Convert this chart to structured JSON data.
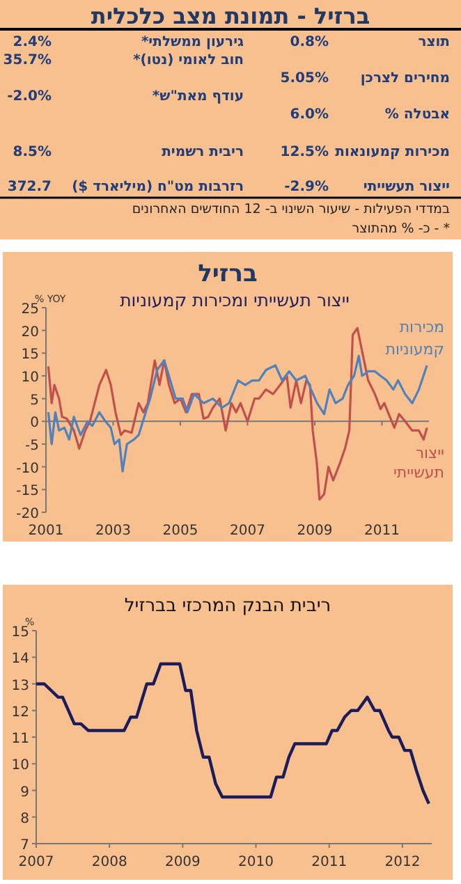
{
  "chart_data": [
    {
      "type": "other",
      "title": "ברזיל - תמונת מצב כלכלית",
      "annotations": [
        "תוצר",
        "0.8%",
        "מחירים לצרכן",
        "5.05%",
        "אבטלה %",
        "6.0%",
        "מכירות קמעונאות",
        "12.5%",
        "ייצור תעשייתי",
        "-2.9%",
        "גירעון ממשלתי*",
        "2.4%",
        "חוב לאומי (נטו)*",
        "35.7%",
        "עודף מאת\"ש*",
        "-2.0%",
        "ריבית רשמית",
        "8.5%",
        "רזרבות מט\"ח (מיליארד $)",
        "372.7",
        "במדדי הפעילות - שיעור השינוי ב- 12 החודשים האחרונים",
        "* - כ- % מהתוצר"
      ]
    },
    {
      "type": "line",
      "title": "ברזיל",
      "subtitle": "ייצור תעשייתי ומכירות קמעוניות",
      "ylabel": "% YOY",
      "xlim": [
        2001,
        2012.4
      ],
      "ylim": [
        -20,
        25
      ],
      "xticks": [
        2001,
        2003,
        2005,
        2007,
        2009,
        2011
      ],
      "yticks": [
        -20,
        -15,
        -10,
        -5,
        0,
        5,
        10,
        15,
        20,
        25
      ],
      "series": [
        {
          "name": "ייצור תעשייתי",
          "color": "#c0504d",
          "x": [
            2001.07,
            2001.17,
            2001.25,
            2001.39,
            2001.48,
            2001.62,
            2001.83,
            2001.99,
            2002.17,
            2002.31,
            2002.45,
            2002.59,
            2002.79,
            2002.93,
            2003.07,
            2003.23,
            2003.34,
            2003.55,
            2003.76,
            2003.9,
            2004.03,
            2004.24,
            2004.38,
            2004.52,
            2004.66,
            2004.83,
            2005.0,
            2005.17,
            2005.34,
            2005.55,
            2005.69,
            2005.83,
            2005.97,
            2006.17,
            2006.35,
            2006.52,
            2006.66,
            2006.79,
            2007.0,
            2007.21,
            2007.34,
            2007.55,
            2007.76,
            2007.97,
            2008.17,
            2008.28,
            2008.45,
            2008.59,
            2008.75,
            2008.86,
            2008.94,
            2009.06,
            2009.14,
            2009.28,
            2009.41,
            2009.55,
            2009.76,
            2009.9,
            2010.03,
            2010.13,
            2010.27,
            2010.41,
            2010.59,
            2010.79,
            2010.96,
            2011.07,
            2011.23,
            2011.37,
            2011.51,
            2011.69,
            2011.9,
            2012.1,
            2012.24,
            2012.34
          ],
          "values": [
            12.1,
            4,
            8,
            5,
            1,
            0.6,
            -2,
            -6,
            -2,
            0,
            4,
            8,
            11.3,
            8,
            2,
            -3,
            -2,
            -2.5,
            4,
            2,
            4,
            13.4,
            8,
            13.4,
            8,
            4,
            5,
            2,
            6,
            6,
            0.6,
            1,
            3,
            5,
            -2,
            4,
            2,
            4,
            0,
            5,
            5,
            7,
            6,
            8,
            10,
            3,
            9,
            4,
            9,
            8,
            -2,
            -9,
            -17.2,
            -16,
            -10,
            -13,
            -9,
            -6,
            -2,
            19,
            20.5,
            15.4,
            9,
            6,
            2.7,
            4,
            1.1,
            -1.4,
            1.6,
            0,
            -2,
            -2,
            -4,
            -1.4
          ]
        },
        {
          "name": "מכירות קמעוניות",
          "color": "#4f81bd",
          "x": [
            2001.07,
            2001.17,
            2001.28,
            2001.39,
            2001.55,
            2001.69,
            2001.83,
            2002.03,
            2002.24,
            2002.38,
            2002.59,
            2002.77,
            2002.93,
            2003.04,
            2003.18,
            2003.28,
            2003.41,
            2003.62,
            2003.76,
            2003.97,
            2004.1,
            2004.31,
            2004.52,
            2004.7,
            2004.86,
            2005.07,
            2005.21,
            2005.41,
            2005.69,
            2005.97,
            2006.24,
            2006.45,
            2006.72,
            2006.93,
            2007.14,
            2007.34,
            2007.55,
            2007.83,
            2008.03,
            2008.24,
            2008.45,
            2008.72,
            2008.89,
            2009.07,
            2009.28,
            2009.44,
            2009.62,
            2009.83,
            2009.99,
            2010.17,
            2010.31,
            2010.41,
            2010.59,
            2010.79,
            2010.96,
            2011.14,
            2011.34,
            2011.48,
            2011.69,
            2011.9,
            2012.1,
            2012.34
          ],
          "values": [
            2,
            -5,
            2,
            -2,
            -1.4,
            -4,
            1,
            -3,
            0,
            -1,
            2,
            0,
            -1.4,
            -5,
            -4,
            -11,
            -5,
            -4,
            -3,
            2,
            5,
            11.3,
            13.4,
            9,
            5,
            5,
            2,
            6,
            4,
            5,
            3,
            4,
            9,
            8,
            9,
            9,
            11.3,
            12.3,
            9,
            11,
            9,
            10,
            7,
            4,
            1.6,
            7,
            4,
            5,
            8,
            10,
            14.4,
            10,
            11,
            11,
            10,
            9,
            7,
            9,
            6,
            4,
            7,
            12.3
          ]
        }
      ]
    },
    {
      "type": "line",
      "title": "ריבית הבנק המרכזי בברזיל",
      "ylabel": "%",
      "xlim": [
        2007,
        2012.4
      ],
      "ylim": [
        7,
        15
      ],
      "xticks": [
        2007,
        2008,
        2009,
        2010,
        2011,
        2012
      ],
      "yticks": [
        7,
        8,
        9,
        10,
        11,
        12,
        13,
        14,
        15
      ],
      "series": [
        {
          "color": "#1c1c5a",
          "x": [
            2007.0,
            2007.11,
            2007.3,
            2007.36,
            2007.52,
            2007.61,
            2007.71,
            2008.2,
            2008.29,
            2008.37,
            2008.51,
            2008.6,
            2008.7,
            2008.96,
            2009.04,
            2009.11,
            2009.19,
            2009.28,
            2009.36,
            2009.45,
            2009.54,
            2010.2,
            2010.28,
            2010.37,
            2010.45,
            2010.53,
            2010.96,
            2011.04,
            2011.11,
            2011.21,
            2011.3,
            2011.39,
            2011.52,
            2011.62,
            2011.69,
            2011.81,
            2011.86,
            2011.95,
            2012.03,
            2012.11,
            2012.19,
            2012.28,
            2012.36
          ],
          "values": [
            13,
            13,
            12.5,
            12.5,
            11.5,
            11.5,
            11.25,
            11.25,
            11.75,
            11.75,
            13,
            13,
            13.75,
            13.75,
            12.75,
            12.75,
            11.25,
            10.25,
            10.25,
            9.25,
            8.75,
            8.75,
            9.5,
            9.5,
            10.25,
            10.75,
            10.75,
            11.25,
            11.25,
            11.75,
            12,
            12,
            12.5,
            12,
            12,
            11.25,
            11,
            11,
            10.5,
            10.5,
            9.75,
            9,
            8.5
          ]
        }
      ]
    }
  ]
}
